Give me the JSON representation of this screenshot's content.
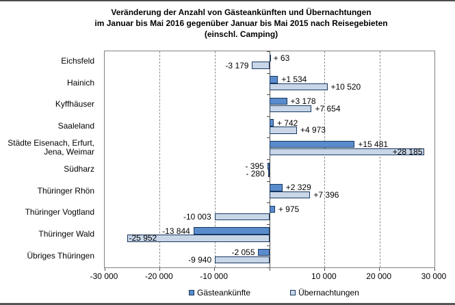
{
  "title": {
    "lines": [
      "Veränderung der Anzahl von Gästeankünften und Übernachtungen",
      "im Januar bis Mai 2016 gegenüber Januar bis Mai 2015 nach Reisegebieten",
      "(einschl. Camping)"
    ]
  },
  "colors": {
    "series_dark": "#5A8CCD",
    "series_light": "#C8D6E8",
    "bar_border": "#17365D",
    "gridline": "#8c8c8c",
    "axis": "#4d4d4d",
    "plot_border": "#808080"
  },
  "chart_data": {
    "type": "bar",
    "orientation": "horizontal",
    "title": "Veränderung der Anzahl von Gästeankünften und Übernachtungen im Januar bis Mai 2016 gegenüber Januar bis Mai 2015 nach Reisegebieten (einschl. Camping)",
    "categories": [
      "Eichsfeld",
      "Hainich",
      "Kyffhäuser",
      "Saaleland",
      "Städte Eisenach, Erfurt,\nJena, Weimar",
      "Südharz",
      "Thüringer Rhön",
      "Thüringer Vogtland",
      "Thüringer Wald",
      "Übriges Thüringen"
    ],
    "series": [
      {
        "name": "Gästeankünfte",
        "color": "#5A8CCD",
        "values": [
          63,
          1534,
          3178,
          742,
          15481,
          -395,
          2329,
          975,
          -13844,
          -2055
        ],
        "labels": [
          "+ 63",
          "+1 534",
          "+3 178",
          "+ 742",
          "+15 481",
          "- 395",
          "+2 329",
          "+ 975",
          "-13 844",
          "-2 055"
        ]
      },
      {
        "name": "Übernachtungen",
        "color": "#C8D6E8",
        "values": [
          -3179,
          10520,
          7654,
          4973,
          28185,
          -280,
          7396,
          -10003,
          -25952,
          -9940
        ],
        "labels": [
          "-3 179",
          "+10 520",
          "+7 654",
          "+4 973",
          "+28 185",
          "- 280",
          "+7 396",
          "-10 003",
          "-25 952",
          "-9 940"
        ]
      }
    ],
    "xlim": [
      -30000,
      30000
    ],
    "x_ticks": [
      {
        "value": -30000,
        "label": "-30 000"
      },
      {
        "value": -20000,
        "label": "-20 000"
      },
      {
        "value": -10000,
        "label": "-10 000"
      },
      {
        "value": 10000,
        "label": "10 000"
      },
      {
        "value": 20000,
        "label": "20 000"
      },
      {
        "value": 30000,
        "label": "30 000"
      }
    ],
    "x_axis_tick_values": [
      -30000,
      -20000,
      -10000,
      0,
      10000,
      20000,
      30000
    ],
    "grid": "vertical-dashed",
    "legend_position": "bottom"
  }
}
